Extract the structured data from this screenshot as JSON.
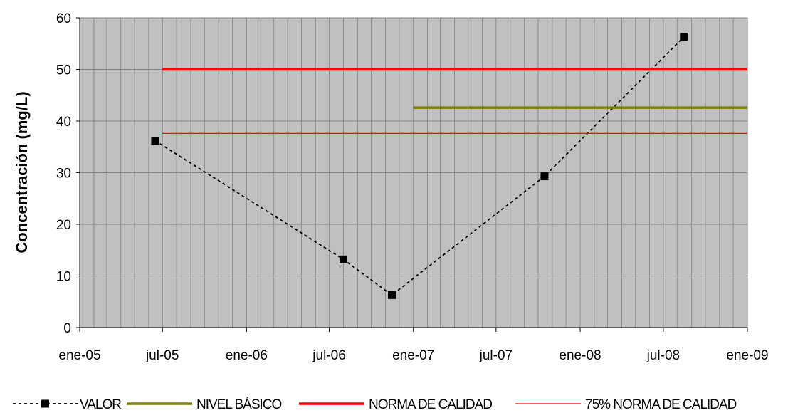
{
  "chart_data": {
    "type": "line",
    "ylabel": "Concentración (mg/L)",
    "xlabel": "",
    "ylim": [
      0,
      60
    ],
    "yticks": [
      0,
      10,
      20,
      30,
      40,
      50,
      60
    ],
    "xlim": [
      "2005-01-01",
      "2009-01-01"
    ],
    "xticks": [
      {
        "date": "2005-01-01",
        "label": "ene-05"
      },
      {
        "date": "2005-07-01",
        "label": "jul-05"
      },
      {
        "date": "2006-01-01",
        "label": "ene-06"
      },
      {
        "date": "2006-07-01",
        "label": "jul-06"
      },
      {
        "date": "2007-01-01",
        "label": "ene-07"
      },
      {
        "date": "2007-07-01",
        "label": "jul-07"
      },
      {
        "date": "2008-01-01",
        "label": "ene-08"
      },
      {
        "date": "2008-07-01",
        "label": "jul-08"
      },
      {
        "date": "2009-01-01",
        "label": "ene-09"
      }
    ],
    "grid": true,
    "legend_position": "bottom",
    "plot_background": "#c0c0c0",
    "series": [
      {
        "name": "VALOR",
        "color": "#000000",
        "style": "dotted-with-square-markers",
        "points": [
          {
            "x": "2005-06-15",
            "y": 36.2
          },
          {
            "x": "2006-08-01",
            "y": 13.2
          },
          {
            "x": "2006-11-15",
            "y": 6.3
          },
          {
            "x": "2007-10-15",
            "y": 29.3
          },
          {
            "x": "2008-08-15",
            "y": 56.3
          }
        ]
      },
      {
        "name": "NIVEL BÁSICO",
        "color": "#808000",
        "style": "solid-thick",
        "points": [
          {
            "x": "2007-01-01",
            "y": 42.6
          },
          {
            "x": "2009-01-01",
            "y": 42.6
          }
        ]
      },
      {
        "name": "NORMA DE CALIDAD",
        "color": "#ff0000",
        "style": "solid-thick",
        "points": [
          {
            "x": "2005-07-01",
            "y": 50
          },
          {
            "x": "2009-01-01",
            "y": 50
          }
        ]
      },
      {
        "name": "75% NORMA DE CALIDAD",
        "color": "#ff0000",
        "style": "solid-thin",
        "points": [
          {
            "x": "2005-07-01",
            "y": 37.6
          },
          {
            "x": "2009-01-01",
            "y": 37.6
          }
        ]
      }
    ]
  }
}
